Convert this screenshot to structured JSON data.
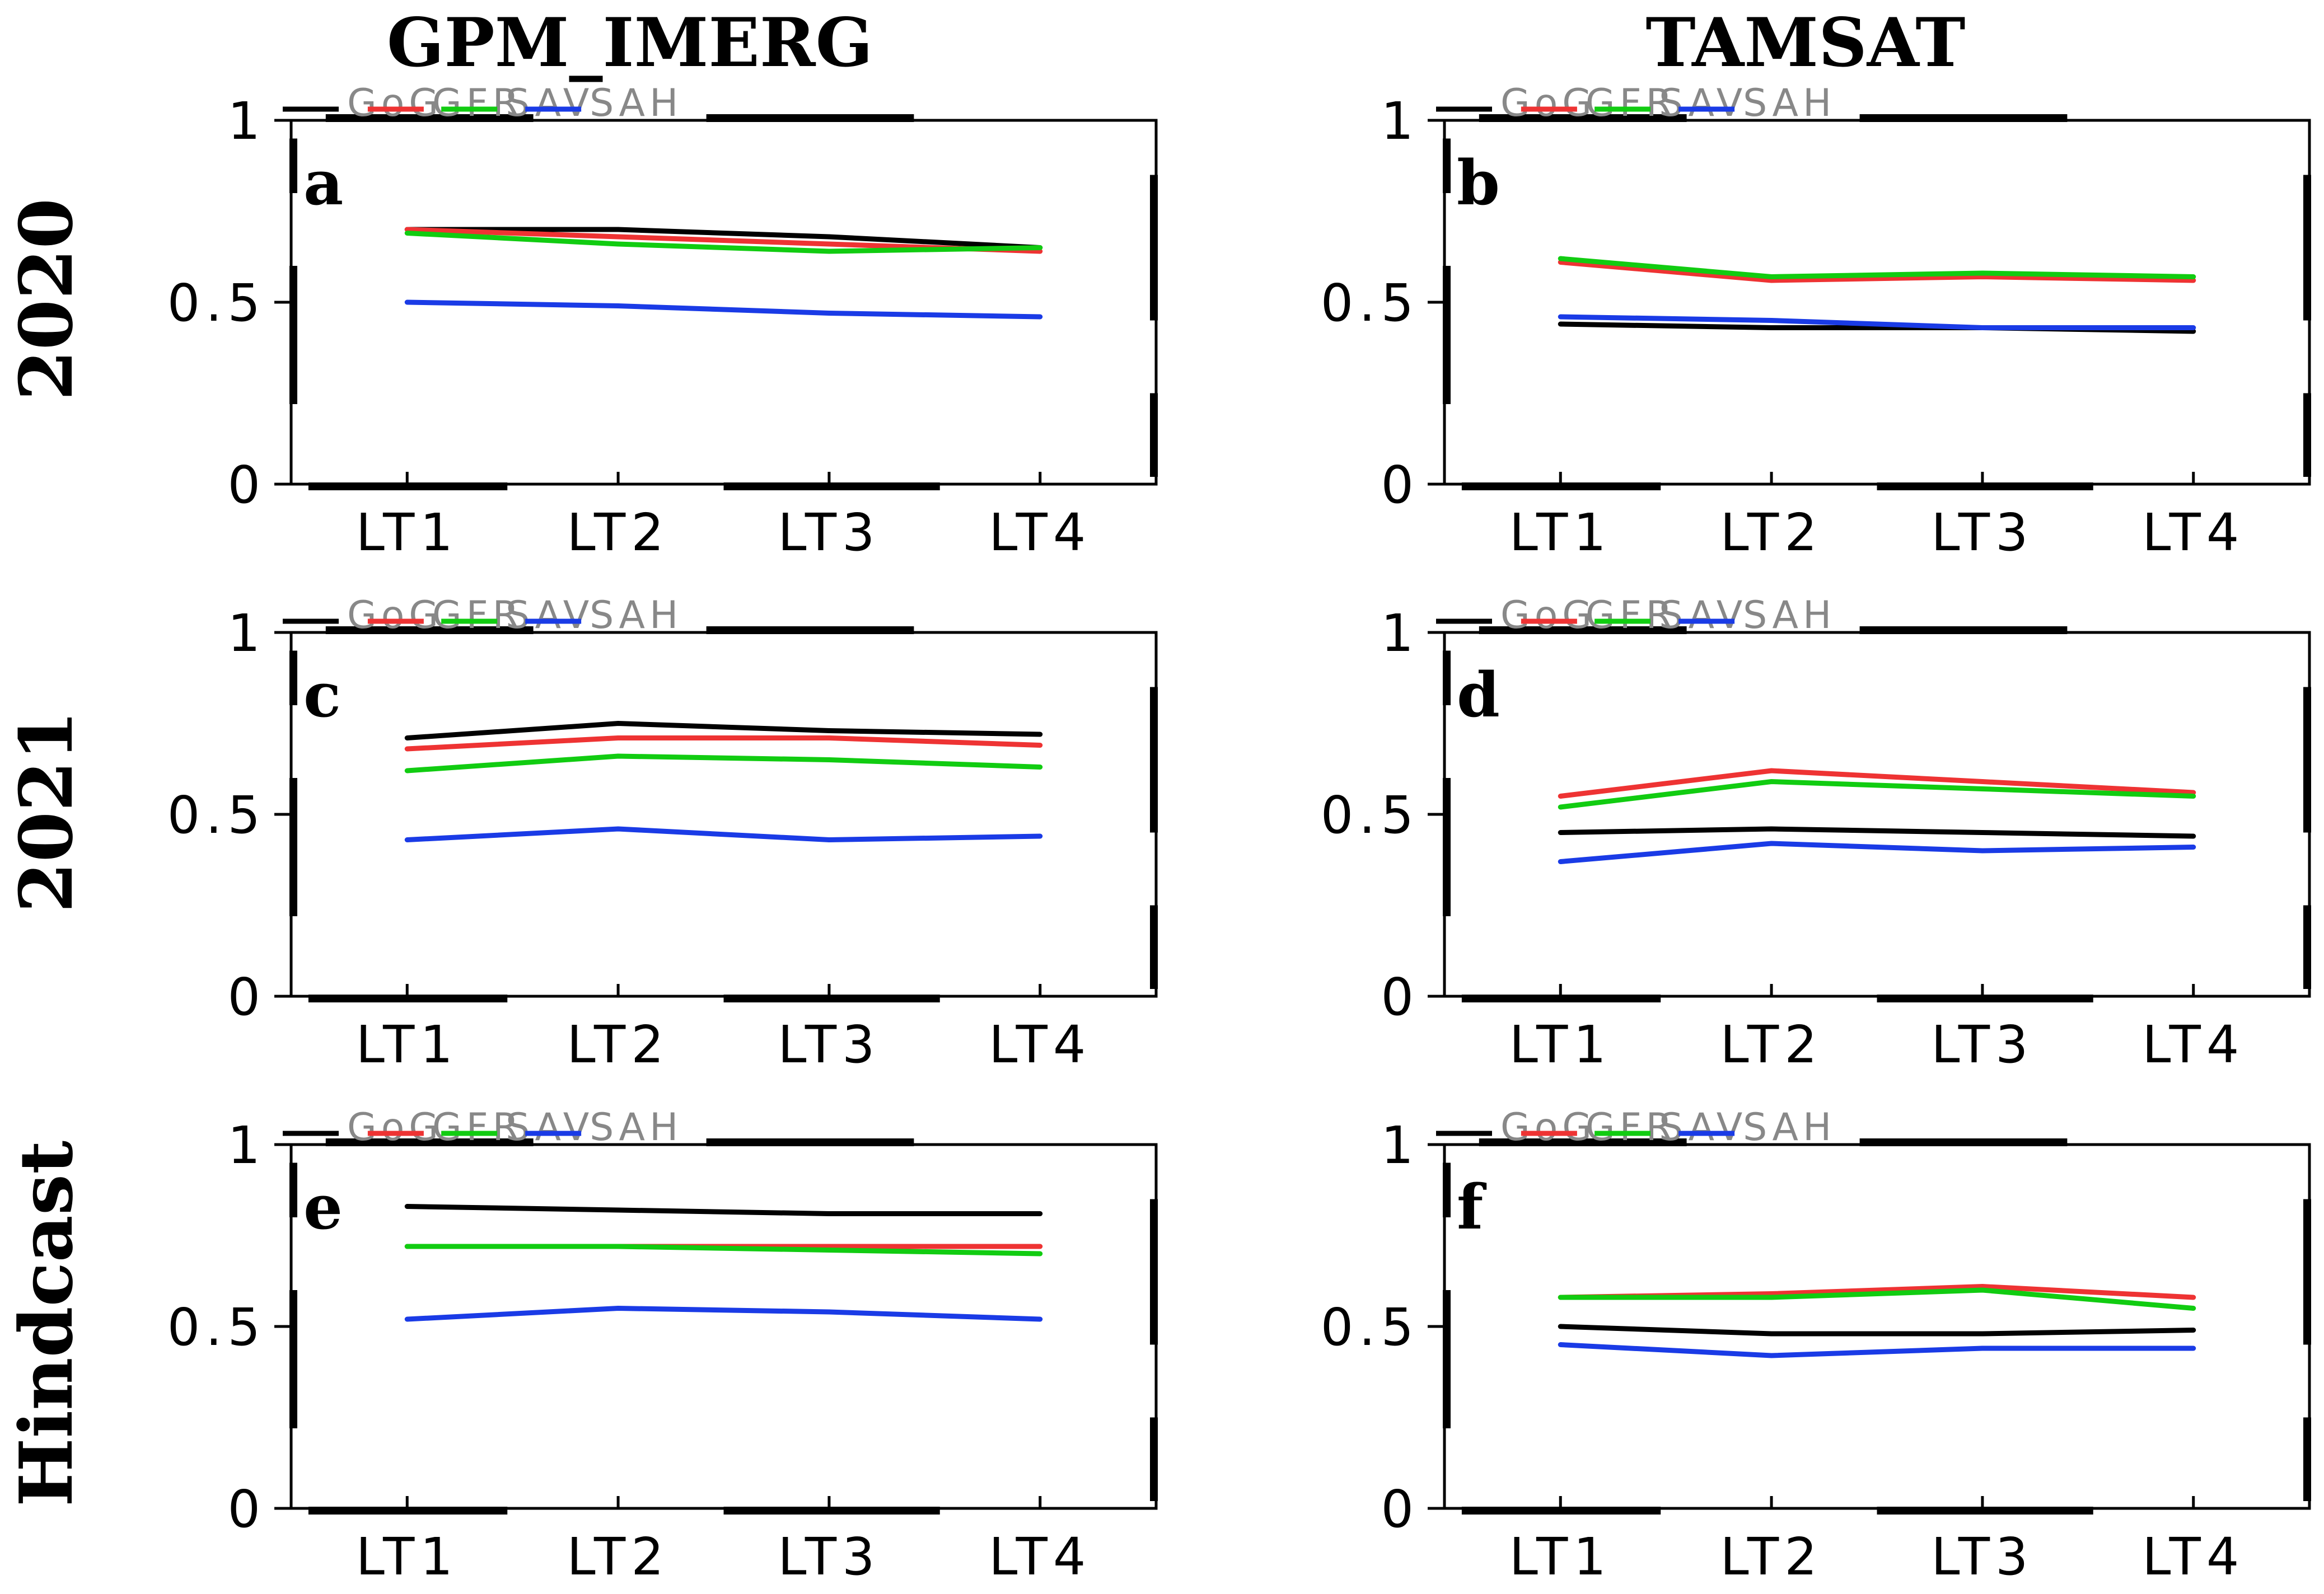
{
  "figure": {
    "column_titles": [
      "GPM_IMERG",
      "TAMSAT"
    ],
    "row_titles": [
      "2020",
      "2021",
      "Hindcast"
    ]
  },
  "chart_data": [
    {
      "type": "line",
      "panel": "a",
      "row_title": "2020",
      "column_title": "GPM_IMERG",
      "categories": [
        "LT1",
        "LT2",
        "LT3",
        "LT4"
      ],
      "ylim": [
        0,
        1
      ],
      "yticks": [
        "0",
        "0.5",
        "1"
      ],
      "legend": "top",
      "grid": false,
      "series": [
        {
          "name": "GoG",
          "color": "#000000",
          "values": [
            0.7,
            0.7,
            0.68,
            0.65
          ]
        },
        {
          "name": "GFR",
          "color": "#ee3333",
          "values": [
            0.7,
            0.68,
            0.66,
            0.64
          ]
        },
        {
          "name": "SAV",
          "color": "#11cc11",
          "values": [
            0.69,
            0.66,
            0.64,
            0.65
          ]
        },
        {
          "name": "SAH",
          "color": "#1a3be6",
          "values": [
            0.5,
            0.49,
            0.47,
            0.46
          ]
        }
      ]
    },
    {
      "type": "line",
      "panel": "b",
      "row_title": "2020",
      "column_title": "TAMSAT",
      "categories": [
        "LT1",
        "LT2",
        "LT3",
        "LT4"
      ],
      "ylim": [
        0,
        1
      ],
      "yticks": [
        "0",
        "0.5",
        "1"
      ],
      "legend": "top",
      "grid": false,
      "series": [
        {
          "name": "GoG",
          "color": "#000000",
          "values": [
            0.44,
            0.43,
            0.43,
            0.42
          ]
        },
        {
          "name": "GFR",
          "color": "#ee3333",
          "values": [
            0.61,
            0.56,
            0.57,
            0.56
          ]
        },
        {
          "name": "SAV",
          "color": "#11cc11",
          "values": [
            0.62,
            0.57,
            0.58,
            0.57
          ]
        },
        {
          "name": "SAH",
          "color": "#1a3be6",
          "values": [
            0.46,
            0.45,
            0.43,
            0.43
          ]
        }
      ]
    },
    {
      "type": "line",
      "panel": "c",
      "row_title": "2021",
      "column_title": "GPM_IMERG",
      "categories": [
        "LT1",
        "LT2",
        "LT3",
        "LT4"
      ],
      "ylim": [
        0,
        1
      ],
      "yticks": [
        "0",
        "0.5",
        "1"
      ],
      "legend": "top",
      "grid": false,
      "series": [
        {
          "name": "GoG",
          "color": "#000000",
          "values": [
            0.71,
            0.75,
            0.73,
            0.72
          ]
        },
        {
          "name": "GFR",
          "color": "#ee3333",
          "values": [
            0.68,
            0.71,
            0.71,
            0.69
          ]
        },
        {
          "name": "SAV",
          "color": "#11cc11",
          "values": [
            0.62,
            0.66,
            0.65,
            0.63
          ]
        },
        {
          "name": "SAH",
          "color": "#1a3be6",
          "values": [
            0.43,
            0.46,
            0.43,
            0.44
          ]
        }
      ]
    },
    {
      "type": "line",
      "panel": "d",
      "row_title": "2021",
      "column_title": "TAMSAT",
      "categories": [
        "LT1",
        "LT2",
        "LT3",
        "LT4"
      ],
      "ylim": [
        0,
        1
      ],
      "yticks": [
        "0",
        "0.5",
        "1"
      ],
      "legend": "top",
      "grid": false,
      "series": [
        {
          "name": "GoG",
          "color": "#000000",
          "values": [
            0.45,
            0.46,
            0.45,
            0.44
          ]
        },
        {
          "name": "GFR",
          "color": "#ee3333",
          "values": [
            0.55,
            0.62,
            0.59,
            0.56
          ]
        },
        {
          "name": "SAV",
          "color": "#11cc11",
          "values": [
            0.52,
            0.59,
            0.57,
            0.55
          ]
        },
        {
          "name": "SAH",
          "color": "#1a3be6",
          "values": [
            0.37,
            0.42,
            0.4,
            0.41
          ]
        }
      ]
    },
    {
      "type": "line",
      "panel": "e",
      "row_title": "Hindcast",
      "column_title": "GPM_IMERG",
      "categories": [
        "LT1",
        "LT2",
        "LT3",
        "LT4"
      ],
      "ylim": [
        0,
        1
      ],
      "yticks": [
        "0",
        "0.5",
        "1"
      ],
      "legend": "top",
      "grid": false,
      "series": [
        {
          "name": "GoG",
          "color": "#000000",
          "values": [
            0.83,
            0.82,
            0.81,
            0.81
          ]
        },
        {
          "name": "GFR",
          "color": "#ee3333",
          "values": [
            0.72,
            0.72,
            0.72,
            0.72
          ]
        },
        {
          "name": "SAV",
          "color": "#11cc11",
          "values": [
            0.72,
            0.72,
            0.71,
            0.7
          ]
        },
        {
          "name": "SAH",
          "color": "#1a3be6",
          "values": [
            0.52,
            0.55,
            0.54,
            0.52
          ]
        }
      ]
    },
    {
      "type": "line",
      "panel": "f",
      "row_title": "Hindcast",
      "column_title": "TAMSAT",
      "categories": [
        "LT1",
        "LT2",
        "LT3",
        "LT4"
      ],
      "ylim": [
        0,
        1
      ],
      "yticks": [
        "0",
        "0.5",
        "1"
      ],
      "legend": "top",
      "grid": false,
      "series": [
        {
          "name": "GoG",
          "color": "#000000",
          "values": [
            0.5,
            0.48,
            0.48,
            0.49
          ]
        },
        {
          "name": "GFR",
          "color": "#ee3333",
          "values": [
            0.58,
            0.59,
            0.61,
            0.58
          ]
        },
        {
          "name": "SAV",
          "color": "#11cc11",
          "values": [
            0.58,
            0.58,
            0.6,
            0.55
          ]
        },
        {
          "name": "SAH",
          "color": "#1a3be6",
          "values": [
            0.45,
            0.42,
            0.44,
            0.44
          ]
        }
      ]
    }
  ]
}
